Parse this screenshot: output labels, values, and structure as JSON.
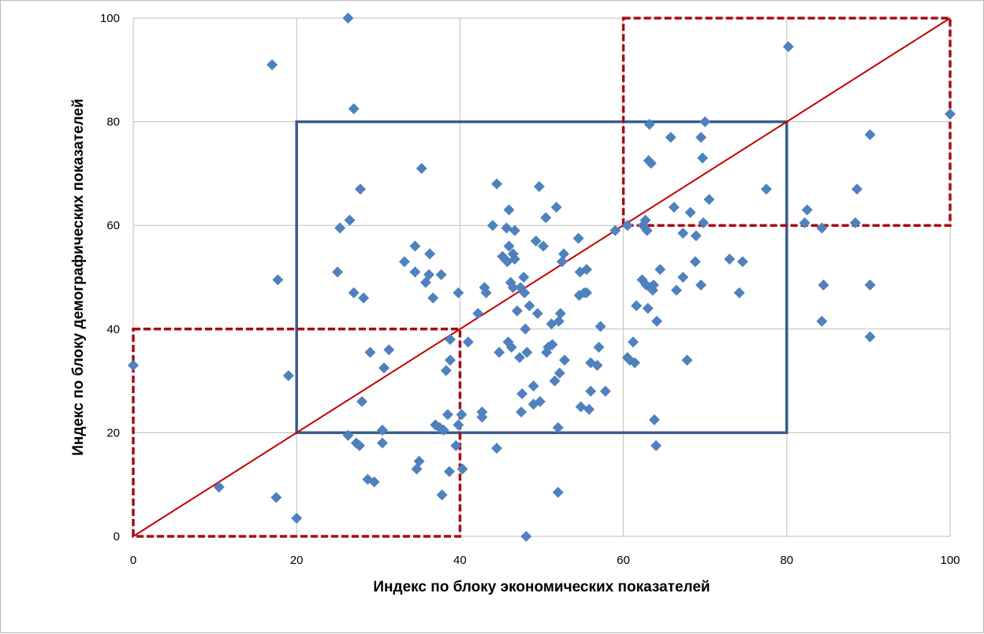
{
  "chart_data": {
    "type": "scatter",
    "xlabel": "Индекс по блоку экономических показателей",
    "ylabel": "Индекс по блоку демографических показателей",
    "xlim": [
      0,
      100
    ],
    "ylim": [
      0,
      100
    ],
    "xticks": [
      0,
      20,
      40,
      60,
      80,
      100
    ],
    "yticks": [
      0,
      20,
      40,
      60,
      80,
      100
    ],
    "grid": true,
    "colors": {
      "points": "#4f81bd",
      "diagonal": "#c00000",
      "central_box": "#385d8a",
      "corner_boxes": "#a50f15",
      "grid": "#bfbfbf"
    },
    "reference_line": {
      "from": [
        0,
        0
      ],
      "to": [
        100,
        100
      ]
    },
    "central_box": {
      "x": [
        20,
        80
      ],
      "y": [
        20,
        80
      ]
    },
    "corner_boxes": [
      {
        "x": [
          0,
          40
        ],
        "y": [
          0,
          40
        ]
      },
      {
        "x": [
          60,
          100
        ],
        "y": [
          60,
          100
        ]
      }
    ],
    "points": [
      [
        0,
        33
      ],
      [
        10.5,
        9.5
      ],
      [
        17,
        91
      ],
      [
        17.5,
        7.5
      ],
      [
        17.7,
        49.5
      ],
      [
        19,
        31
      ],
      [
        20,
        3.5
      ],
      [
        25,
        51
      ],
      [
        25.3,
        59.5
      ],
      [
        26.3,
        100
      ],
      [
        26.3,
        19.5
      ],
      [
        26.5,
        61
      ],
      [
        27,
        47
      ],
      [
        27,
        82.5
      ],
      [
        27.3,
        18
      ],
      [
        27.7,
        17.5
      ],
      [
        27.8,
        67
      ],
      [
        28,
        26
      ],
      [
        28.2,
        46
      ],
      [
        28.7,
        11
      ],
      [
        29,
        35.5
      ],
      [
        29.5,
        10.5
      ],
      [
        30.5,
        20.5
      ],
      [
        30.5,
        18
      ],
      [
        30.7,
        32.5
      ],
      [
        31.3,
        36
      ],
      [
        33.2,
        53
      ],
      [
        34.5,
        56
      ],
      [
        34.5,
        51
      ],
      [
        34.7,
        13
      ],
      [
        35.3,
        71
      ],
      [
        35,
        14.5
      ],
      [
        35.8,
        49
      ],
      [
        36.2,
        50.5
      ],
      [
        36.3,
        54.5
      ],
      [
        36.7,
        46
      ],
      [
        37,
        21.5
      ],
      [
        37.5,
        21
      ],
      [
        37.7,
        50.5
      ],
      [
        37.8,
        8
      ],
      [
        38,
        20.5
      ],
      [
        38.3,
        32
      ],
      [
        38.5,
        23.5
      ],
      [
        38.7,
        12.5
      ],
      [
        38.8,
        38
      ],
      [
        38.8,
        34
      ],
      [
        39.5,
        17.5
      ],
      [
        39.8,
        47
      ],
      [
        39.8,
        21.5
      ],
      [
        40.2,
        23.5
      ],
      [
        40.3,
        13
      ],
      [
        41,
        37.5
      ],
      [
        42.2,
        43
      ],
      [
        42.7,
        24
      ],
      [
        42.7,
        23
      ],
      [
        43,
        48
      ],
      [
        43.2,
        47
      ],
      [
        44,
        60
      ],
      [
        44.5,
        68
      ],
      [
        44.5,
        17
      ],
      [
        44.8,
        35.5
      ],
      [
        45.2,
        54
      ],
      [
        45.5,
        53.5
      ],
      [
        45.7,
        59.5
      ],
      [
        45.8,
        53
      ],
      [
        45.9,
        37.5
      ],
      [
        46,
        63
      ],
      [
        46,
        56
      ],
      [
        46.2,
        49
      ],
      [
        46.3,
        36.5
      ],
      [
        46.5,
        54.5
      ],
      [
        46.5,
        48
      ],
      [
        46.7,
        53.5
      ],
      [
        46.7,
        59
      ],
      [
        47,
        43.5
      ],
      [
        47.3,
        34.5
      ],
      [
        47.4,
        48
      ],
      [
        47.5,
        24
      ],
      [
        47.6,
        27.5
      ],
      [
        47.8,
        50
      ],
      [
        47.9,
        47
      ],
      [
        48,
        40
      ],
      [
        48.2,
        35.5
      ],
      [
        48.1,
        0
      ],
      [
        48.5,
        44.5
      ],
      [
        49,
        25.5
      ],
      [
        49,
        29
      ],
      [
        49.3,
        57
      ],
      [
        49.5,
        43
      ],
      [
        49.7,
        67.5
      ],
      [
        49.8,
        26
      ],
      [
        50.2,
        56
      ],
      [
        50.5,
        61.5
      ],
      [
        50.6,
        35.5
      ],
      [
        50.8,
        36.5
      ],
      [
        51.2,
        41
      ],
      [
        51.3,
        37
      ],
      [
        51.6,
        30
      ],
      [
        51.8,
        63.5
      ],
      [
        52,
        8.5
      ],
      [
        52,
        21
      ],
      [
        52.1,
        41.5
      ],
      [
        52.2,
        31.5
      ],
      [
        52.3,
        43
      ],
      [
        52.5,
        53
      ],
      [
        52.7,
        54.5
      ],
      [
        52.8,
        34
      ],
      [
        54.5,
        57.5
      ],
      [
        54.6,
        46.5
      ],
      [
        54.7,
        51
      ],
      [
        54.8,
        25
      ],
      [
        55.2,
        47
      ],
      [
        55.5,
        51.5
      ],
      [
        55.5,
        47
      ],
      [
        55.8,
        24.5
      ],
      [
        56,
        33.5
      ],
      [
        56,
        28
      ],
      [
        56.8,
        33
      ],
      [
        57,
        36.5
      ],
      [
        57.2,
        40.5
      ],
      [
        57.8,
        28
      ],
      [
        59,
        59
      ],
      [
        60.5,
        34.5
      ],
      [
        60.5,
        60
      ],
      [
        60.8,
        34
      ],
      [
        61.2,
        37.5
      ],
      [
        61.4,
        33.5
      ],
      [
        61.6,
        44.5
      ],
      [
        62.3,
        49.5
      ],
      [
        62.4,
        60
      ],
      [
        62.7,
        61
      ],
      [
        62.8,
        48.5
      ],
      [
        62.9,
        59
      ],
      [
        63,
        44
      ],
      [
        63.1,
        72.5
      ],
      [
        63.2,
        79.5
      ],
      [
        63.3,
        48
      ],
      [
        63.4,
        72
      ],
      [
        63.6,
        47.5
      ],
      [
        63.7,
        48.5
      ],
      [
        63.8,
        22.5
      ],
      [
        64,
        17.5
      ],
      [
        64.1,
        41.5
      ],
      [
        64.5,
        51.5
      ],
      [
        65.8,
        77
      ],
      [
        66.2,
        63.5
      ],
      [
        66.5,
        47.5
      ],
      [
        67.3,
        58.5
      ],
      [
        67.3,
        50
      ],
      [
        67.8,
        34
      ],
      [
        68.2,
        62.5
      ],
      [
        68.8,
        53
      ],
      [
        68.9,
        58
      ],
      [
        69.5,
        48.5
      ],
      [
        69.5,
        77
      ],
      [
        69.7,
        73
      ],
      [
        69.8,
        60.5
      ],
      [
        70,
        80
      ],
      [
        70.5,
        65
      ],
      [
        73,
        53.5
      ],
      [
        74.2,
        47
      ],
      [
        74.6,
        53
      ],
      [
        77.5,
        67
      ],
      [
        80.2,
        94.5
      ],
      [
        82.2,
        60.5
      ],
      [
        82.5,
        63
      ],
      [
        84.3,
        59.5
      ],
      [
        84.5,
        48.5
      ],
      [
        84.3,
        41.5
      ],
      [
        88.4,
        60.5
      ],
      [
        88.6,
        67
      ],
      [
        90.2,
        77.5
      ],
      [
        90.2,
        48.5
      ],
      [
        90.2,
        38.5
      ],
      [
        100,
        81.5
      ]
    ]
  }
}
